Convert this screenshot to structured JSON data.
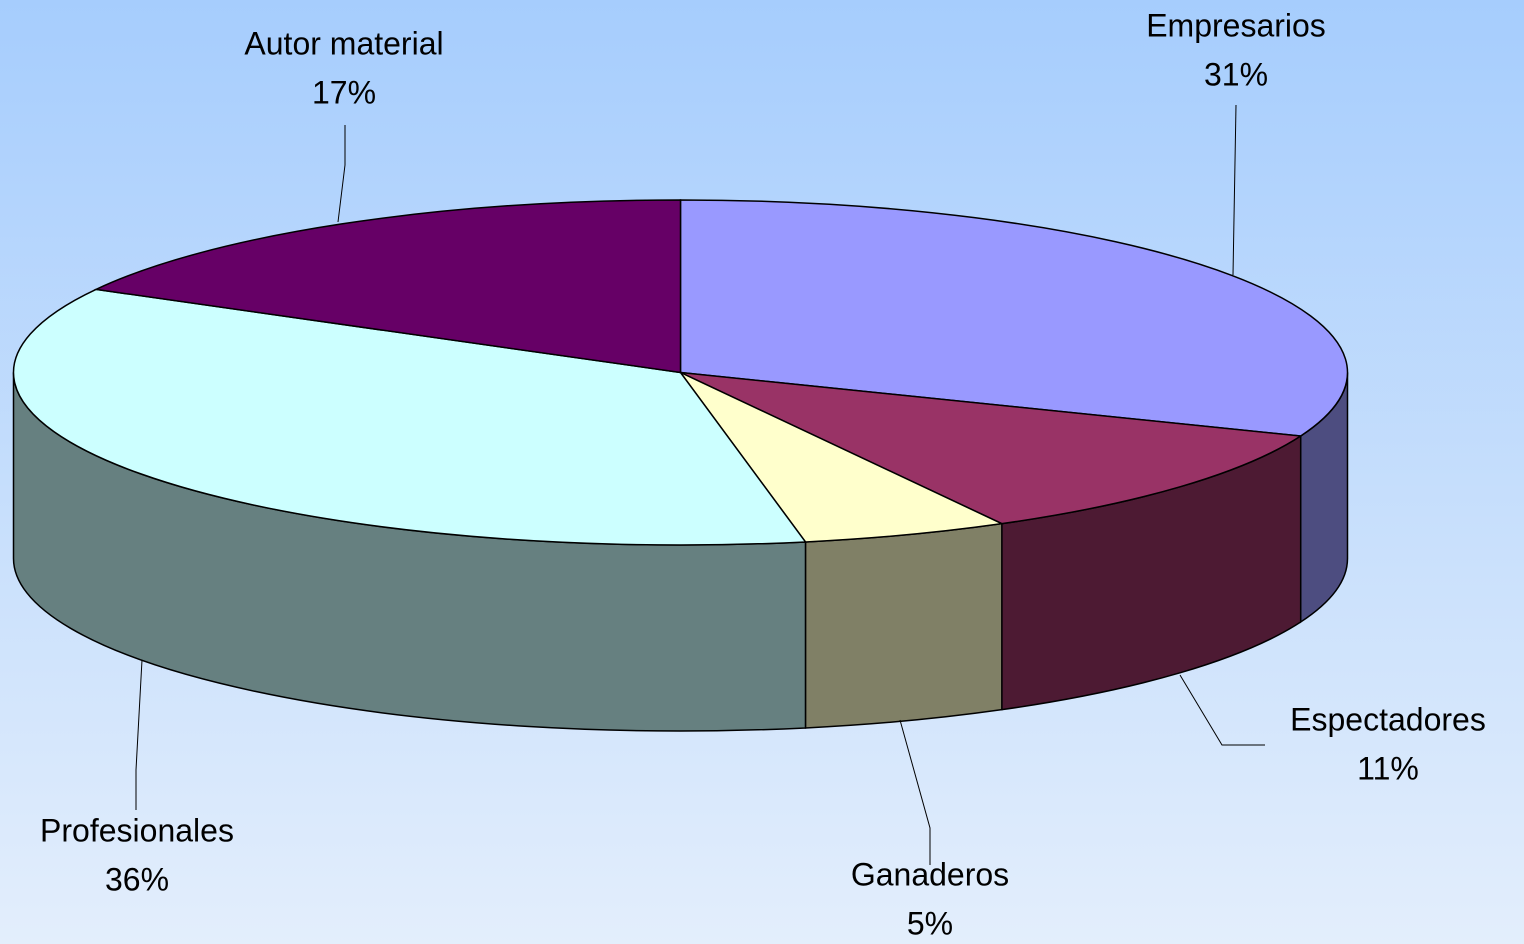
{
  "chart_data": {
    "type": "pie3d",
    "categories": [
      "Empresarios",
      "Espectadores",
      "Ganaderos",
      "Profesionales",
      "Autor material"
    ],
    "values": [
      31,
      11,
      5,
      36,
      17
    ],
    "value_labels": [
      "31%",
      "11%",
      "5%",
      "36%",
      "17%"
    ],
    "colors": [
      "#9999ff",
      "#993366",
      "#ffffcc",
      "#ccffff",
      "#660066"
    ]
  }
}
